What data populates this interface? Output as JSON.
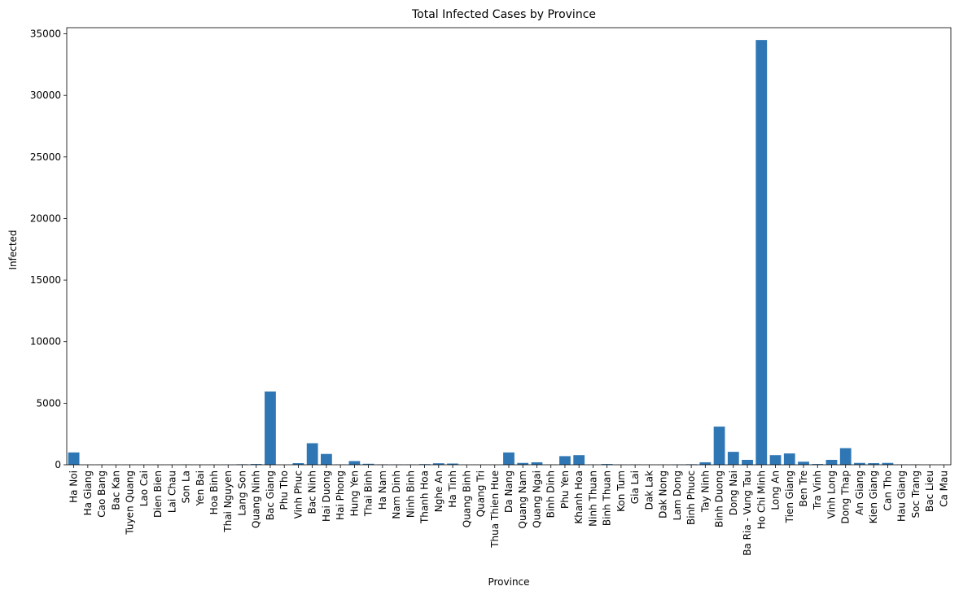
{
  "chart_data": {
    "type": "bar",
    "title": "Total Infected Cases by Province",
    "xlabel": "Province",
    "ylabel": "Infected",
    "ylim": [
      0,
      35500
    ],
    "yticks": [
      0,
      5000,
      10000,
      15000,
      20000,
      25000,
      30000,
      35000
    ],
    "grid": false,
    "bar_color": "#2f77b4",
    "categories": [
      "Ha Noi",
      "Ha Giang",
      "Cao Bang",
      "Bac Kan",
      "Tuyen Quang",
      "Lao Cai",
      "Dien Bien",
      "Lai Chau",
      "Son La",
      "Yen Bai",
      "Hoa Binh",
      "Thai Nguyen",
      "Lang Son",
      "Quang Ninh",
      "Bac Giang",
      "Phu Tho",
      "Vinh Phuc",
      "Bac Ninh",
      "Hai Duong",
      "Hai Phong",
      "Hung Yen",
      "Thai Binh",
      "Ha Nam",
      "Nam Dinh",
      "Ninh Binh",
      "Thanh Hoa",
      "Nghe An",
      "Ha Tinh",
      "Quang Binh",
      "Quang Tri",
      "Thua Thien Hue",
      "Da Nang",
      "Quang Nam",
      "Quang Ngai",
      "Binh Dinh",
      "Phu Yen",
      "Khanh Hoa",
      "Ninh Thuan",
      "Binh Thuan",
      "Kon Tum",
      "Gia Lai",
      "Dak Lak",
      "Dak Nong",
      "Lam Dong",
      "Binh Phuoc",
      "Tay Ninh",
      "Binh Duong",
      "Dong Nai",
      "Ba Ria - Vung Tau",
      "Ho Chi Minh",
      "Long An",
      "Tien Giang",
      "Ben Tre",
      "Tra Vinh",
      "Vinh Long",
      "Dong Thap",
      "An Giang",
      "Kien Giang",
      "Can Tho",
      "Hau Giang",
      "Soc Trang",
      "Bac Lieu",
      "Ca Mau"
    ],
    "values": [
      1000,
      5,
      10,
      5,
      10,
      10,
      5,
      5,
      20,
      5,
      10,
      10,
      40,
      60,
      5950,
      5,
      130,
      1750,
      880,
      20,
      300,
      80,
      30,
      20,
      20,
      50,
      120,
      100,
      10,
      10,
      10,
      1000,
      150,
      200,
      20,
      700,
      780,
      20,
      60,
      15,
      20,
      10,
      10,
      20,
      40,
      200,
      3100,
      1050,
      400,
      34500,
      780,
      920,
      250,
      60,
      400,
      1350,
      150,
      130,
      150,
      20,
      20,
      5,
      5
    ]
  }
}
